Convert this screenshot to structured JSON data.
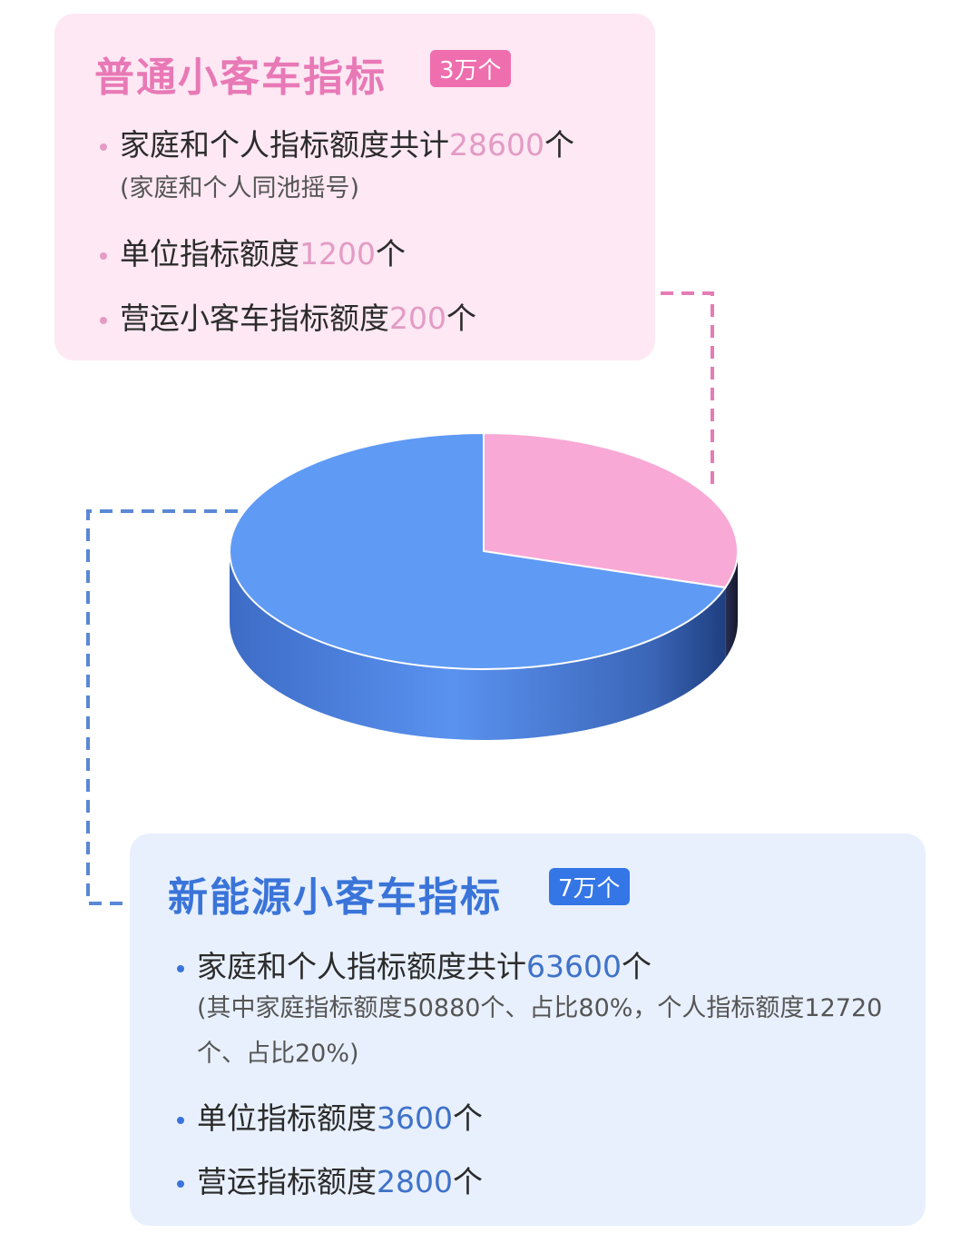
{
  "standard": {
    "title": "普通小客车指标",
    "badge": "3万个",
    "items": [
      {
        "pre": "家庭和个人指标额度共计",
        "num": "28600",
        "post": "个"
      },
      {
        "pre": "单位指标额度",
        "num": "1200",
        "post": "个"
      },
      {
        "pre": "营运小客车指标额度",
        "num": "200",
        "post": "个"
      }
    ],
    "note": "(家庭和个人同池摇号)"
  },
  "nev": {
    "title": "新能源小客车指标",
    "badge": "7万个",
    "items": [
      {
        "pre": "家庭和个人指标额度共计",
        "num": "63600",
        "post": "个"
      },
      {
        "pre": "单位指标额度",
        "num": "3600",
        "post": "个"
      },
      {
        "pre": "营运指标额度",
        "num": "2800",
        "post": "个"
      }
    ],
    "note": "(其中家庭指标额度50880个、占比80%，个人指标额度12720个、占比20%)"
  },
  "chart_data": {
    "type": "pie",
    "style": "3d",
    "categories": [
      "普通小客车指标",
      "新能源小客车指标"
    ],
    "values": [
      30000,
      70000
    ],
    "colors": [
      "#f9a9d5",
      "#5f9af5"
    ],
    "legend": "none"
  }
}
